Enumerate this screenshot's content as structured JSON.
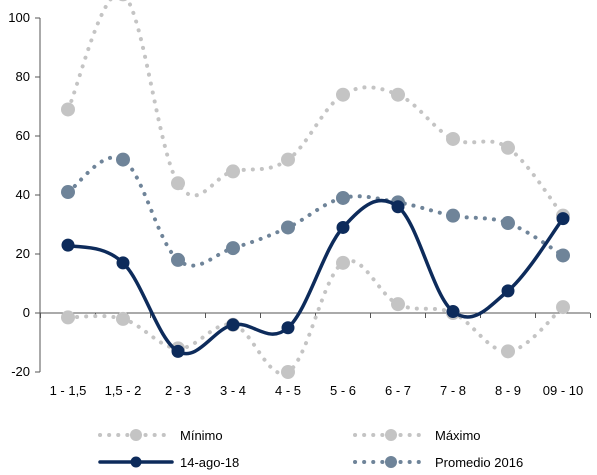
{
  "chart_data": {
    "type": "line",
    "categories": [
      "1 - 1,5",
      "1,5 - 2",
      "2 - 3",
      "3 - 4",
      "4 - 5",
      "5 - 6",
      "6 - 7",
      "7 - 8",
      "8 - 9",
      "09 - 10"
    ],
    "ylim": [
      -20,
      100
    ],
    "yticks": [
      -20,
      0,
      20,
      40,
      60,
      80,
      100
    ],
    "grid": false,
    "legend_position": "bottom",
    "series": [
      {
        "name": "Mínimo",
        "style": "dotted",
        "color": "#c4c4c4",
        "values": [
          -1.5,
          -2,
          -12,
          -4,
          -20,
          17,
          3,
          0,
          -13,
          2
        ]
      },
      {
        "name": "Máximo",
        "style": "dotted",
        "color": "#c4c4c4",
        "values": [
          69,
          108,
          44,
          48,
          52,
          74,
          74,
          59,
          56,
          33
        ]
      },
      {
        "name": "14-ago-18",
        "style": "solid",
        "color": "#0d2b5b",
        "values": [
          23,
          17,
          -13,
          -4,
          -5,
          29,
          36,
          0.5,
          7.5,
          32
        ]
      },
      {
        "name": "Promedio 2016",
        "style": "dotted",
        "color": "#6f8499",
        "values": [
          41,
          52,
          18,
          22,
          29,
          39,
          37.5,
          33,
          30.5,
          19.5
        ]
      }
    ]
  }
}
